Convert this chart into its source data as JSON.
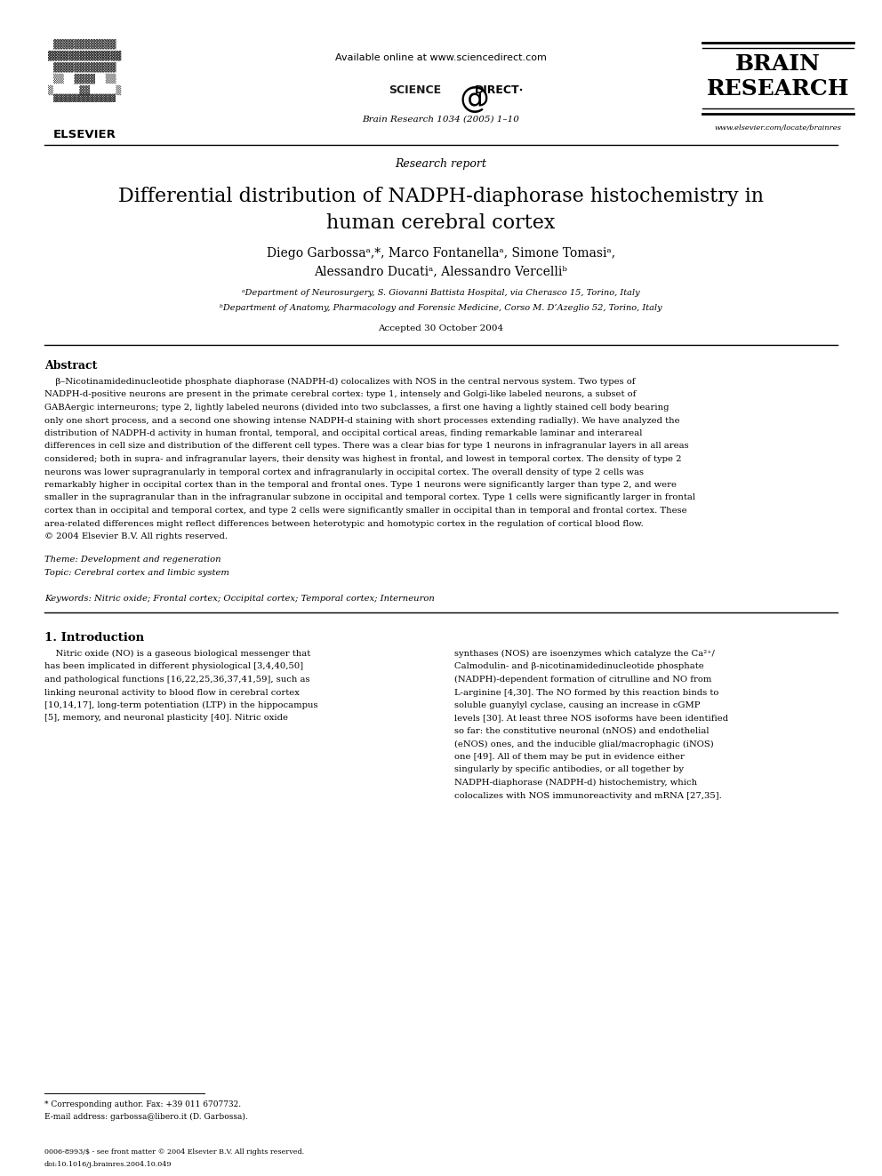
{
  "page_width": 9.92,
  "page_height": 13.23,
  "dpi": 100,
  "background_color": "#ffffff",
  "header": {
    "available_online": "Available online at www.sciencedirect.com",
    "science_direct": "SCIENCE  @  DIRECT·",
    "journal_line": "Brain Research 1034 (2005) 1–10",
    "elsevier_label": "ELSEVIER",
    "brain_research_line1": "BRAIN",
    "brain_research_line2": "RESEARCH",
    "website": "www.elsevier.com/locate/brainres"
  },
  "section_label": "Research report",
  "title_line1": "Differential distribution of NADPH-diaphorase histochemistry in",
  "title_line2": "human cerebral cortex",
  "authors_line1": "Diego Garbossaᵃ,*, Marco Fontanellaᵃ, Simone Tomasiᵃ,",
  "authors_line2": "Alessandro Ducatiᵃ, Alessandro Vercelliᵇ",
  "affil_a": "ᵃDepartment of Neurosurgery, S. Giovanni Battista Hospital, via Cherasco 15, Torino, Italy",
  "affil_b": "ᵇDepartment of Anatomy, Pharmacology and Forensic Medicine, Corso M. D’Azeglio 52, Torino, Italy",
  "accepted": "Accepted 30 October 2004",
  "abstract_title": "Abstract",
  "abstract_lines": [
    "    β–Nicotinamidedinucleotide phosphate diaphorase (NADPH-d) colocalizes with NOS in the central nervous system. Two types of",
    "NADPH-d-positive neurons are present in the primate cerebral cortex: type 1, intensely and Golgi-like labeled neurons, a subset of",
    "GABAergic interneurons; type 2, lightly labeled neurons (divided into two subclasses, a first one having a lightly stained cell body bearing",
    "only one short process, and a second one showing intense NADPH-d staining with short processes extending radially). We have analyzed the",
    "distribution of NADPH-d activity in human frontal, temporal, and occipital cortical areas, finding remarkable laminar and interareal",
    "differences in cell size and distribution of the different cell types. There was a clear bias for type 1 neurons in infragranular layers in all areas",
    "considered; both in supra- and infragranular layers, their density was highest in frontal, and lowest in temporal cortex. The density of type 2",
    "neurons was lower supragranularly in temporal cortex and infragranularly in occipital cortex. The overall density of type 2 cells was",
    "remarkably higher in occipital cortex than in the temporal and frontal ones. Type 1 neurons were significantly larger than type 2, and were",
    "smaller in the supragranular than in the infragranular subzone in occipital and temporal cortex. Type 1 cells were significantly larger in frontal",
    "cortex than in occipital and temporal cortex, and type 2 cells were significantly smaller in occipital than in temporal and frontal cortex. These",
    "area-related differences might reflect differences between heterotypic and homotypic cortex in the regulation of cortical blood flow.",
    "© 2004 Elsevier B.V. All rights reserved."
  ],
  "theme_line": "Theme: Development and regeneration",
  "topic_line": "Topic: Cerebral cortex and limbic system",
  "keywords_line": "Keywords: Nitric oxide; Frontal cortex; Occipital cortex; Temporal cortex; Interneuron",
  "intro_title": "1. Introduction",
  "intro_left_lines": [
    "    Nitric oxide (NO) is a gaseous biological messenger that",
    "has been implicated in different physiological [3,4,40,50]",
    "and pathological functions [16,22,25,36,37,41,59], such as",
    "linking neuronal activity to blood flow in cerebral cortex",
    "[10,14,17], long-term potentiation (LTP) in the hippocampus",
    "[5], memory, and neuronal plasticity [40]. Nitric oxide"
  ],
  "intro_right_lines": [
    "synthases (NOS) are isoenzymes which catalyze the Ca²⁺/",
    "Calmodulin- and β-nicotinamidedinucleotide phosphate",
    "(NADPH)-dependent formation of citrulline and NO from",
    "L-arginine [4,30]. The NO formed by this reaction binds to",
    "soluble guanylyl cyclase, causing an increase in cGMP",
    "levels [30]. At least three NOS isoforms have been identified",
    "so far: the constitutive neuronal (nNOS) and endothelial",
    "(eNOS) ones, and the inducible glial/macrophagic (iNOS)",
    "one [49]. All of them may be put in evidence either",
    "singularly by specific antibodies, or all together by",
    "NADPH-diaphorase (NADPH-d) histochemistry, which",
    "colocalizes with NOS immunoreactivity and mRNA [27,35]."
  ],
  "footnote_star": "* Corresponding author. Fax: +39 011 6707732.",
  "footnote_email": "E-mail address: garbossa@libero.it (D. Garbossa).",
  "bottom_line1": "0006-8993/$ - see front matter © 2004 Elsevier B.V. All rights reserved.",
  "bottom_line2": "doi:10.1016/j.brainres.2004.10.049"
}
